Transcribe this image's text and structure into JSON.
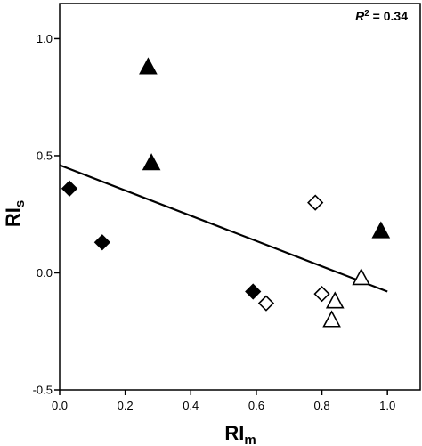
{
  "chart_data": {
    "type": "scatter",
    "xlabel": "RI",
    "xlabel_sub": "m",
    "ylabel": "RI",
    "ylabel_sub": "s",
    "xlim": [
      0.0,
      1.1
    ],
    "ylim": [
      -0.5,
      1.15
    ],
    "xticks": [
      0.0,
      0.2,
      0.4,
      0.6,
      0.8,
      1.0
    ],
    "xtick_labels": [
      "0.0",
      "0.2",
      "0.4",
      "0.6",
      "0.8",
      "1.0"
    ],
    "yticks": [
      -0.5,
      0.0,
      0.5,
      1.0
    ],
    "ytick_labels": [
      "-0.5",
      "0.0",
      "0.5",
      "1.0"
    ],
    "annotation": {
      "symbol": "R",
      "exponent": "2",
      "text": " = 0.34"
    },
    "grid": false,
    "series": [
      {
        "marker": "triangle",
        "fill": "#000000",
        "x": [
          0.27,
          0.28,
          0.98
        ],
        "y": [
          0.88,
          0.47,
          0.18
        ]
      },
      {
        "marker": "diamond",
        "fill": "#000000",
        "x": [
          0.03,
          0.13,
          0.59
        ],
        "y": [
          0.36,
          0.13,
          -0.08
        ]
      },
      {
        "marker": "diamond",
        "fill": "#ffffff",
        "x": [
          0.63,
          0.78,
          0.8
        ],
        "y": [
          -0.13,
          0.3,
          -0.09
        ]
      },
      {
        "marker": "triangle",
        "fill": "#ffffff",
        "x": [
          0.84,
          0.83,
          0.92
        ],
        "y": [
          -0.12,
          -0.2,
          -0.02
        ]
      }
    ],
    "fit_line": {
      "x": [
        0.0,
        1.0
      ],
      "y": [
        0.46,
        -0.08
      ]
    }
  }
}
